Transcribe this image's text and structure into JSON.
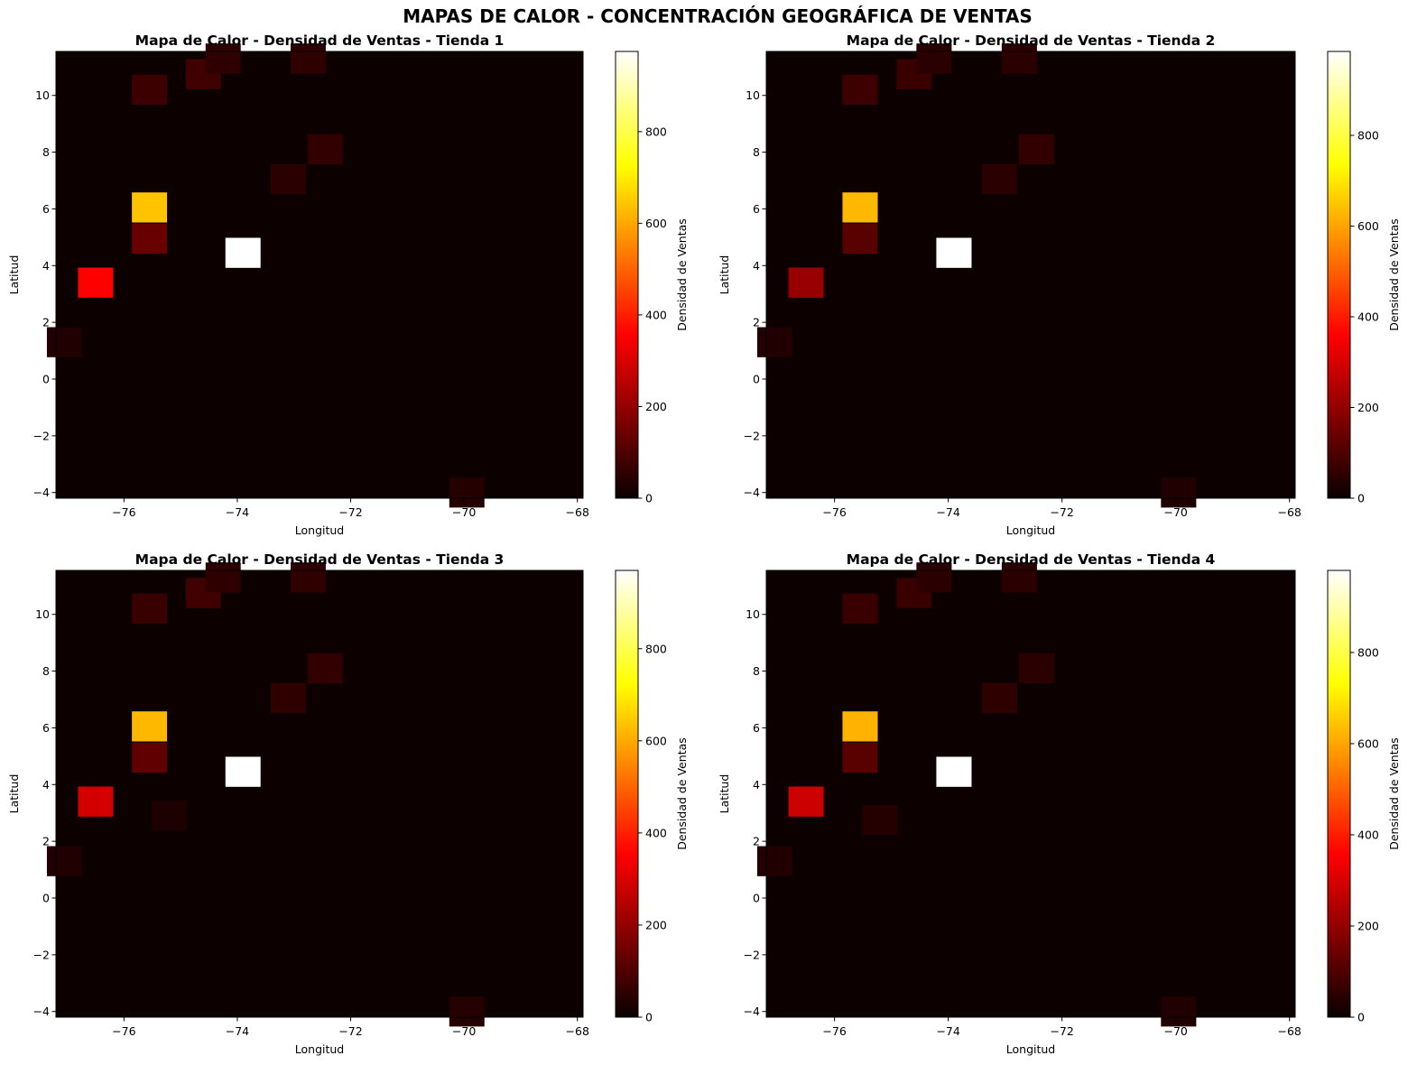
{
  "suptitle": "MAPAS DE CALOR - CONCENTRACIÓN GEOGRÁFICA DE VENTAS",
  "chart_data": [
    {
      "type": "heatmap",
      "title": "Mapa de Calor - Densidad de Ventas - Tienda 1",
      "xlabel": "Longitud",
      "ylabel": "Latitud",
      "colorbar_label": "Densidad de Ventas",
      "xlim": [
        -77.2,
        -67.9
      ],
      "ylim": [
        -4.2,
        11.55
      ],
      "vmax": 975,
      "xticks": [
        -76,
        -74,
        -72,
        -70,
        -68
      ],
      "yticks": [
        -4,
        -2,
        0,
        2,
        4,
        6,
        8,
        10
      ],
      "xtick_labels": [
        "−76",
        "−74",
        "−72",
        "−70",
        "−68"
      ],
      "ytick_labels": [
        "−4",
        "−2",
        "0",
        "2",
        "4",
        "6",
        "8",
        "10"
      ],
      "cbar_ticks": [
        0,
        200,
        400,
        600,
        800
      ],
      "cbar_tick_labels": [
        "0",
        "200",
        "400",
        "600",
        "800"
      ],
      "grid": false,
      "cells": [
        {
          "lon": -73.9,
          "lat": 4.45,
          "value": 975
        },
        {
          "lon": -75.55,
          "lat": 6.05,
          "value": 640
        },
        {
          "lon": -76.5,
          "lat": 3.4,
          "value": 340
        },
        {
          "lon": -75.55,
          "lat": 4.95,
          "value": 130
        },
        {
          "lon": -75.55,
          "lat": 10.2,
          "value": 70
        },
        {
          "lon": -74.6,
          "lat": 10.75,
          "value": 75
        },
        {
          "lon": -74.25,
          "lat": 11.3,
          "value": 50
        },
        {
          "lon": -72.75,
          "lat": 11.3,
          "value": 50
        },
        {
          "lon": -72.45,
          "lat": 8.1,
          "value": 55
        },
        {
          "lon": -73.1,
          "lat": 7.05,
          "value": 45
        },
        {
          "lon": -77.05,
          "lat": 1.3,
          "value": 30
        },
        {
          "lon": -69.95,
          "lat": -4.0,
          "value": 35
        }
      ]
    },
    {
      "type": "heatmap",
      "title": "Mapa de Calor - Densidad de Ventas - Tienda 2",
      "xlabel": "Longitud",
      "ylabel": "Latitud",
      "colorbar_label": "Densidad de Ventas",
      "xlim": [
        -77.2,
        -67.9
      ],
      "ylim": [
        -4.2,
        11.55
      ],
      "vmax": 985,
      "xticks": [
        -76,
        -74,
        -72,
        -70,
        -68
      ],
      "yticks": [
        -4,
        -2,
        0,
        2,
        4,
        6,
        8,
        10
      ],
      "xtick_labels": [
        "−76",
        "−74",
        "−72",
        "−70",
        "−68"
      ],
      "ytick_labels": [
        "−4",
        "−2",
        "0",
        "2",
        "4",
        "6",
        "8",
        "10"
      ],
      "cbar_ticks": [
        0,
        200,
        400,
        600,
        800
      ],
      "cbar_tick_labels": [
        "0",
        "200",
        "400",
        "600",
        "800"
      ],
      "grid": false,
      "cells": [
        {
          "lon": -73.9,
          "lat": 4.45,
          "value": 985
        },
        {
          "lon": -75.55,
          "lat": 6.05,
          "value": 630
        },
        {
          "lon": -76.5,
          "lat": 3.4,
          "value": 200
        },
        {
          "lon": -75.55,
          "lat": 4.95,
          "value": 110
        },
        {
          "lon": -75.55,
          "lat": 10.2,
          "value": 70
        },
        {
          "lon": -74.6,
          "lat": 10.75,
          "value": 65
        },
        {
          "lon": -74.25,
          "lat": 11.3,
          "value": 45
        },
        {
          "lon": -72.75,
          "lat": 11.3,
          "value": 45
        },
        {
          "lon": -72.45,
          "lat": 8.1,
          "value": 55
        },
        {
          "lon": -73.1,
          "lat": 7.05,
          "value": 45
        },
        {
          "lon": -77.05,
          "lat": 1.3,
          "value": 30
        },
        {
          "lon": -69.95,
          "lat": -4.0,
          "value": 30
        }
      ]
    },
    {
      "type": "heatmap",
      "title": "Mapa de Calor - Densidad de Ventas - Tienda 3",
      "xlabel": "Longitud",
      "ylabel": "Latitud",
      "colorbar_label": "Densidad de Ventas",
      "xlim": [
        -77.2,
        -67.9
      ],
      "ylim": [
        -4.2,
        11.55
      ],
      "vmax": 970,
      "xticks": [
        -76,
        -74,
        -72,
        -70,
        -68
      ],
      "yticks": [
        -4,
        -2,
        0,
        2,
        4,
        6,
        8,
        10
      ],
      "xtick_labels": [
        "−76",
        "−74",
        "−72",
        "−70",
        "−68"
      ],
      "ytick_labels": [
        "−4",
        "−2",
        "0",
        "2",
        "4",
        "6",
        "8",
        "10"
      ],
      "cbar_ticks": [
        0,
        200,
        400,
        600,
        800
      ],
      "cbar_tick_labels": [
        "0",
        "200",
        "400",
        "600",
        "800"
      ],
      "grid": false,
      "cells": [
        {
          "lon": -73.9,
          "lat": 4.45,
          "value": 970
        },
        {
          "lon": -75.55,
          "lat": 6.05,
          "value": 620
        },
        {
          "lon": -76.5,
          "lat": 3.4,
          "value": 280
        },
        {
          "lon": -75.55,
          "lat": 4.95,
          "value": 120
        },
        {
          "lon": -75.55,
          "lat": 10.2,
          "value": 65
        },
        {
          "lon": -74.6,
          "lat": 10.75,
          "value": 75
        },
        {
          "lon": -74.25,
          "lat": 11.3,
          "value": 50
        },
        {
          "lon": -72.75,
          "lat": 11.3,
          "value": 50
        },
        {
          "lon": -72.45,
          "lat": 8.1,
          "value": 55
        },
        {
          "lon": -73.1,
          "lat": 7.05,
          "value": 50
        },
        {
          "lon": -77.05,
          "lat": 1.3,
          "value": 30
        },
        {
          "lon": -75.2,
          "lat": 2.9,
          "value": 25
        },
        {
          "lon": -69.95,
          "lat": -4.0,
          "value": 35
        }
      ]
    },
    {
      "type": "heatmap",
      "title": "Mapa de Calor - Densidad de Ventas - Tienda 4",
      "xlabel": "Longitud",
      "ylabel": "Latitud",
      "colorbar_label": "Densidad de Ventas",
      "xlim": [
        -77.2,
        -67.9
      ],
      "ylim": [
        -4.2,
        11.55
      ],
      "vmax": 980,
      "xticks": [
        -76,
        -74,
        -72,
        -70,
        -68
      ],
      "yticks": [
        -4,
        -2,
        0,
        2,
        4,
        6,
        8,
        10
      ],
      "xtick_labels": [
        "−76",
        "−74",
        "−72",
        "−70",
        "−68"
      ],
      "ytick_labels": [
        "−4",
        "−2",
        "0",
        "2",
        "4",
        "6",
        "8",
        "10"
      ],
      "cbar_ticks": [
        0,
        200,
        400,
        600,
        800
      ],
      "cbar_tick_labels": [
        "0",
        "200",
        "400",
        "600",
        "800"
      ],
      "grid": false,
      "cells": [
        {
          "lon": -73.9,
          "lat": 4.45,
          "value": 980
        },
        {
          "lon": -75.55,
          "lat": 6.05,
          "value": 620
        },
        {
          "lon": -76.5,
          "lat": 3.4,
          "value": 270
        },
        {
          "lon": -75.55,
          "lat": 4.95,
          "value": 110
        },
        {
          "lon": -75.55,
          "lat": 10.2,
          "value": 65
        },
        {
          "lon": -74.6,
          "lat": 10.75,
          "value": 65
        },
        {
          "lon": -74.25,
          "lat": 11.3,
          "value": 45
        },
        {
          "lon": -72.75,
          "lat": 11.3,
          "value": 45
        },
        {
          "lon": -72.45,
          "lat": 8.1,
          "value": 45
        },
        {
          "lon": -73.1,
          "lat": 7.05,
          "value": 50
        },
        {
          "lon": -77.05,
          "lat": 1.3,
          "value": 30
        },
        {
          "lon": -75.2,
          "lat": 2.75,
          "value": 35
        },
        {
          "lon": -69.95,
          "lat": -4.0,
          "value": 30
        }
      ]
    }
  ]
}
